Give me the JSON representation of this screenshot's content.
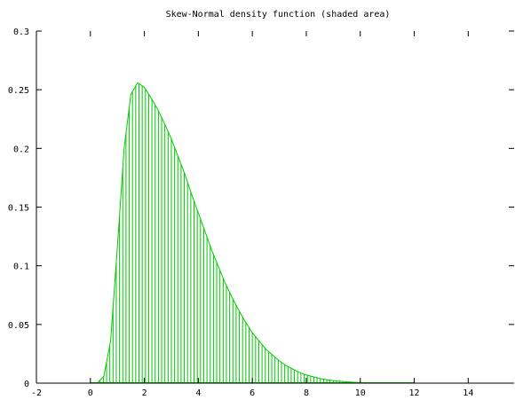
{
  "chart_data": {
    "type": "area",
    "title": "Skew-Normal  density function (shaded area)",
    "xlabel": "",
    "ylabel": "",
    "xlim": [
      -2,
      15.7
    ],
    "ylim": [
      0,
      0.3
    ],
    "x_ticks": [
      -2,
      0,
      2,
      4,
      6,
      8,
      10,
      12,
      14
    ],
    "x_tick_labels": [
      "-2",
      "0",
      "2",
      "4",
      "6",
      "8",
      "10",
      "12",
      "14"
    ],
    "y_ticks": [
      0,
      0.05,
      0.1,
      0.15,
      0.2,
      0.25,
      0.3
    ],
    "y_tick_labels": [
      "0",
      "0.05",
      "0.1",
      "0.15",
      "0.2",
      "0.25",
      "0.3"
    ],
    "grid": false,
    "legend": "none",
    "color": "#00cc00",
    "fill_style": "vertical-hatch",
    "series": [
      {
        "x": [
          0,
          0.25,
          0.5,
          0.75,
          1.0,
          1.25,
          1.5,
          1.75,
          2.0,
          2.25,
          2.5,
          2.75,
          3.0,
          3.25,
          3.5,
          3.75,
          4.0,
          4.25,
          4.5,
          4.75,
          5.0,
          5.25,
          5.5,
          5.75,
          6.0,
          6.25,
          6.5,
          6.75,
          7.0,
          7.25,
          7.5,
          7.75,
          8.0,
          8.25,
          8.5,
          8.75,
          9.0,
          9.25,
          9.5,
          9.75,
          10.0,
          10.25,
          10.5,
          10.75,
          11.0,
          11.25,
          11.5,
          11.75,
          12.0
        ],
        "y": [
          0.0,
          0.0,
          0.006,
          0.036,
          0.116,
          0.2,
          0.246,
          0.256,
          0.252,
          0.243,
          0.233,
          0.221,
          0.208,
          0.193,
          0.178,
          0.161,
          0.145,
          0.129,
          0.113,
          0.099,
          0.085,
          0.073,
          0.062,
          0.052,
          0.043,
          0.036,
          0.029,
          0.024,
          0.019,
          0.015,
          0.012,
          0.009,
          0.007,
          0.0055,
          0.004,
          0.003,
          0.0022,
          0.0016,
          0.0011,
          0.0008,
          0.0005,
          0.0003,
          0.0002,
          0.00015,
          0.0001,
          6e-05,
          4e-05,
          2e-05,
          0.0
        ]
      }
    ]
  }
}
